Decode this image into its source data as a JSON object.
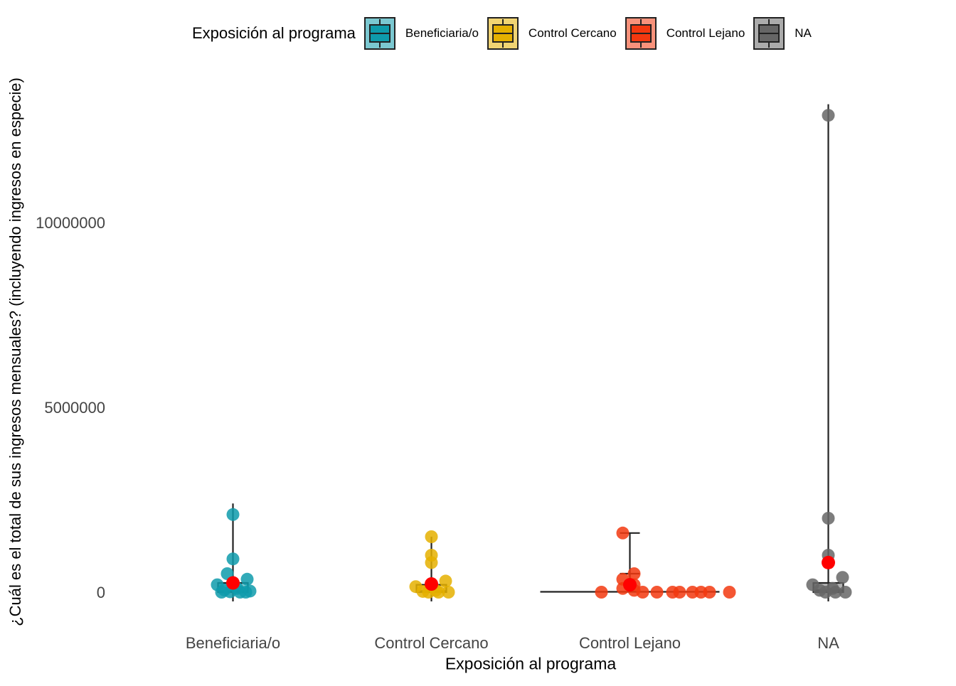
{
  "legend": {
    "title": "Exposición al programa",
    "items": [
      {
        "label": "Beneficiaria/o",
        "color": "#0E9BAB"
      },
      {
        "label": "Control Cercano",
        "color": "#E5B000"
      },
      {
        "label": "Control Lejano",
        "color": "#F2380F"
      },
      {
        "label": "NA",
        "color": "#666666"
      }
    ]
  },
  "chart_data": {
    "type": "boxplot",
    "xlabel": "Exposición al programa",
    "ylabel": "¿Cuál es el total de sus ingresos mensuales? (incluyendo ingresos en especie)",
    "categories": [
      "Beneficiaria/o",
      "Control Cercano",
      "Control Lejano",
      "NA"
    ],
    "yticks": [
      0,
      5000000,
      10000000
    ],
    "ytick_labels": [
      "0",
      "5000000",
      "10000000"
    ],
    "ylim": [
      -900000,
      13800000
    ],
    "mean_color": "#FF0000",
    "series": [
      {
        "name": "Beneficiaria/o",
        "color": "#0E9BAB",
        "whisker_low": -250000,
        "q1": 0,
        "median": 30000,
        "q3": 250000,
        "whisker_high": 2400000,
        "mean": 250000,
        "points": [
          2100000,
          900000,
          500000,
          350000,
          200000,
          100000,
          60000,
          30000,
          10000,
          0,
          0,
          0
        ]
      },
      {
        "name": "Control Cercano",
        "color": "#E5B000",
        "whisker_low": -250000,
        "q1": 0,
        "median": 30000,
        "q3": 200000,
        "whisker_high": 1500000,
        "mean": 220000,
        "points": [
          1500000,
          1000000,
          800000,
          300000,
          150000,
          50000,
          20000,
          0,
          0,
          0
        ]
      },
      {
        "name": "Control Lejano",
        "color": "#F2380F",
        "whisker_low": 0,
        "q1": 0,
        "median": 10000,
        "q3": 50000,
        "whisker_high": 1600000,
        "mean": 200000,
        "outlier_extra": 500000,
        "points": [
          1600000,
          500000,
          350000,
          200000,
          100000,
          50000,
          0,
          0,
          0,
          0,
          0,
          0,
          0,
          0,
          0
        ]
      },
      {
        "name": "NA",
        "color": "#666666",
        "whisker_low": -250000,
        "q1": 0,
        "median": 50000,
        "q3": 250000,
        "whisker_high": 13200000,
        "mean": 800000,
        "points": [
          12900000,
          2000000,
          1000000,
          400000,
          200000,
          100000,
          50000,
          0,
          0,
          0
        ]
      }
    ]
  }
}
